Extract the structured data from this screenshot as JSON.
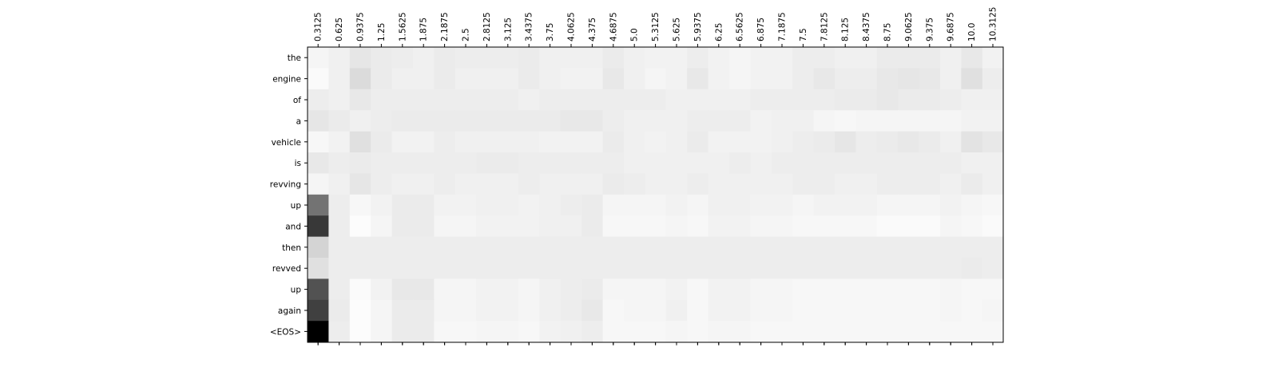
{
  "chart_data": {
    "type": "heatmap",
    "title": "",
    "xlabel": "",
    "ylabel": "",
    "x_labels": [
      "0.3125",
      "0.625",
      "0.9375",
      "1.25",
      "1.5625",
      "1.875",
      "2.1875",
      "2.5",
      "2.8125",
      "3.125",
      "3.4375",
      "3.75",
      "4.0625",
      "4.375",
      "4.6875",
      "5.0",
      "5.3125",
      "5.625",
      "5.9375",
      "6.25",
      "6.5625",
      "6.875",
      "7.1875",
      "7.5",
      "7.8125",
      "8.125",
      "8.4375",
      "8.75",
      "9.0625",
      "9.375",
      "9.6875",
      "10.0",
      "10.3125"
    ],
    "y_labels": [
      "the",
      "engine",
      "of",
      "a",
      "vehicle",
      "is",
      "revving",
      "up",
      "and",
      "then",
      "revved",
      "up",
      "again",
      "<EOS>"
    ],
    "colormap": "gray_r",
    "value_range": [
      0,
      1
    ],
    "tick_marks_bottom": 34,
    "values": [
      [
        0.04,
        0.06,
        0.1,
        0.08,
        0.07,
        0.06,
        0.08,
        0.07,
        0.07,
        0.07,
        0.08,
        0.06,
        0.06,
        0.06,
        0.08,
        0.06,
        0.05,
        0.05,
        0.07,
        0.05,
        0.04,
        0.05,
        0.05,
        0.07,
        0.07,
        0.06,
        0.06,
        0.08,
        0.08,
        0.08,
        0.06,
        0.09,
        0.05
      ],
      [
        0.02,
        0.06,
        0.14,
        0.08,
        0.06,
        0.06,
        0.08,
        0.06,
        0.06,
        0.06,
        0.08,
        0.06,
        0.05,
        0.05,
        0.09,
        0.06,
        0.04,
        0.05,
        0.09,
        0.05,
        0.04,
        0.05,
        0.05,
        0.07,
        0.09,
        0.07,
        0.07,
        0.09,
        0.1,
        0.09,
        0.06,
        0.12,
        0.07
      ],
      [
        0.07,
        0.06,
        0.09,
        0.07,
        0.07,
        0.07,
        0.07,
        0.07,
        0.07,
        0.07,
        0.06,
        0.07,
        0.07,
        0.07,
        0.07,
        0.07,
        0.07,
        0.06,
        0.06,
        0.06,
        0.06,
        0.07,
        0.07,
        0.07,
        0.07,
        0.08,
        0.08,
        0.09,
        0.08,
        0.08,
        0.07,
        0.06,
        0.06
      ],
      [
        0.1,
        0.08,
        0.06,
        0.07,
        0.08,
        0.08,
        0.08,
        0.08,
        0.08,
        0.08,
        0.08,
        0.08,
        0.09,
        0.09,
        0.07,
        0.06,
        0.06,
        0.06,
        0.07,
        0.07,
        0.07,
        0.05,
        0.06,
        0.06,
        0.04,
        0.03,
        0.04,
        0.04,
        0.04,
        0.04,
        0.04,
        0.05,
        0.05
      ],
      [
        0.03,
        0.05,
        0.12,
        0.08,
        0.05,
        0.05,
        0.07,
        0.06,
        0.06,
        0.06,
        0.06,
        0.05,
        0.05,
        0.05,
        0.08,
        0.06,
        0.05,
        0.06,
        0.08,
        0.05,
        0.05,
        0.05,
        0.06,
        0.07,
        0.08,
        0.1,
        0.07,
        0.08,
        0.09,
        0.08,
        0.06,
        0.11,
        0.09
      ],
      [
        0.09,
        0.07,
        0.08,
        0.07,
        0.07,
        0.07,
        0.07,
        0.07,
        0.08,
        0.08,
        0.07,
        0.07,
        0.07,
        0.07,
        0.07,
        0.06,
        0.06,
        0.06,
        0.06,
        0.06,
        0.07,
        0.06,
        0.07,
        0.07,
        0.07,
        0.07,
        0.07,
        0.07,
        0.07,
        0.07,
        0.07,
        0.06,
        0.06
      ],
      [
        0.04,
        0.06,
        0.1,
        0.07,
        0.06,
        0.06,
        0.07,
        0.06,
        0.06,
        0.06,
        0.07,
        0.06,
        0.06,
        0.06,
        0.08,
        0.07,
        0.06,
        0.06,
        0.07,
        0.06,
        0.06,
        0.06,
        0.06,
        0.07,
        0.07,
        0.06,
        0.06,
        0.07,
        0.07,
        0.07,
        0.06,
        0.08,
        0.06
      ],
      [
        0.55,
        0.07,
        0.03,
        0.05,
        0.08,
        0.08,
        0.05,
        0.05,
        0.06,
        0.06,
        0.05,
        0.06,
        0.07,
        0.08,
        0.04,
        0.04,
        0.04,
        0.05,
        0.04,
        0.06,
        0.06,
        0.05,
        0.05,
        0.04,
        0.05,
        0.05,
        0.05,
        0.04,
        0.04,
        0.04,
        0.05,
        0.04,
        0.03
      ],
      [
        0.78,
        0.07,
        0.01,
        0.04,
        0.08,
        0.08,
        0.04,
        0.04,
        0.05,
        0.05,
        0.05,
        0.06,
        0.06,
        0.08,
        0.03,
        0.03,
        0.03,
        0.04,
        0.03,
        0.05,
        0.05,
        0.04,
        0.04,
        0.03,
        0.03,
        0.03,
        0.03,
        0.02,
        0.02,
        0.02,
        0.04,
        0.03,
        0.02
      ],
      [
        0.17,
        0.07,
        0.07,
        0.07,
        0.07,
        0.07,
        0.07,
        0.07,
        0.07,
        0.07,
        0.07,
        0.07,
        0.07,
        0.07,
        0.07,
        0.07,
        0.07,
        0.07,
        0.07,
        0.07,
        0.07,
        0.07,
        0.07,
        0.07,
        0.07,
        0.07,
        0.07,
        0.07,
        0.07,
        0.07,
        0.07,
        0.07,
        0.07
      ],
      [
        0.12,
        0.07,
        0.07,
        0.07,
        0.07,
        0.07,
        0.07,
        0.07,
        0.07,
        0.07,
        0.07,
        0.07,
        0.07,
        0.07,
        0.07,
        0.07,
        0.07,
        0.07,
        0.07,
        0.07,
        0.07,
        0.07,
        0.07,
        0.07,
        0.07,
        0.07,
        0.07,
        0.07,
        0.07,
        0.07,
        0.07,
        0.08,
        0.07
      ],
      [
        0.68,
        0.07,
        0.02,
        0.05,
        0.09,
        0.09,
        0.04,
        0.04,
        0.05,
        0.05,
        0.04,
        0.06,
        0.07,
        0.08,
        0.04,
        0.04,
        0.04,
        0.05,
        0.03,
        0.05,
        0.05,
        0.04,
        0.04,
        0.03,
        0.03,
        0.03,
        0.03,
        0.03,
        0.03,
        0.03,
        0.04,
        0.03,
        0.03
      ],
      [
        0.75,
        0.08,
        0.01,
        0.04,
        0.08,
        0.08,
        0.04,
        0.04,
        0.05,
        0.05,
        0.04,
        0.06,
        0.07,
        0.09,
        0.03,
        0.04,
        0.04,
        0.06,
        0.03,
        0.05,
        0.05,
        0.04,
        0.04,
        0.03,
        0.03,
        0.03,
        0.03,
        0.03,
        0.03,
        0.03,
        0.04,
        0.03,
        0.04
      ],
      [
        1.0,
        0.07,
        0.01,
        0.04,
        0.08,
        0.08,
        0.03,
        0.03,
        0.04,
        0.04,
        0.03,
        0.05,
        0.06,
        0.07,
        0.03,
        0.03,
        0.03,
        0.04,
        0.03,
        0.04,
        0.04,
        0.03,
        0.03,
        0.03,
        0.03,
        0.03,
        0.03,
        0.03,
        0.03,
        0.03,
        0.03,
        0.03,
        0.03
      ]
    ]
  }
}
